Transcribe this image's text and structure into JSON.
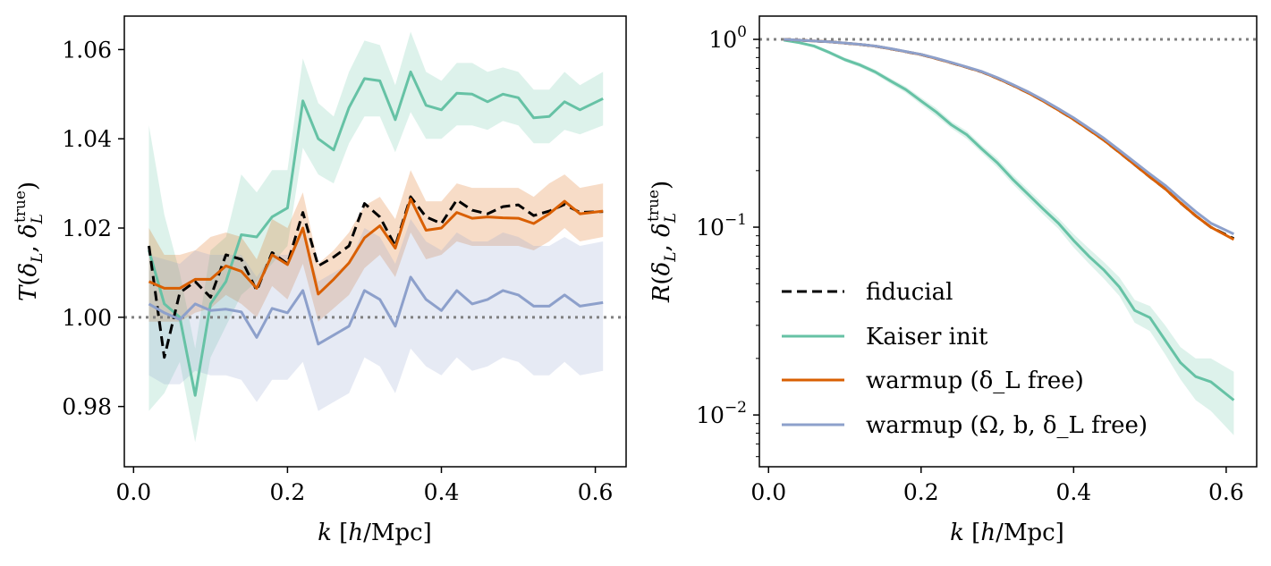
{
  "chart_data": [
    {
      "type": "line",
      "xlabel": "k [h/Mpc]",
      "ylabel": "T(δ_L, δ_L^true)",
      "xlim": [
        -0.012,
        0.64
      ],
      "ylim": [
        0.9665,
        1.0675
      ],
      "xticks": [
        0.0,
        0.2,
        0.4,
        0.6
      ],
      "xtick_labels": [
        "0.0",
        "0.2",
        "0.4",
        "0.6"
      ],
      "yticks": [
        0.98,
        1.0,
        1.02,
        1.04,
        1.06
      ],
      "ytick_labels": [
        "0.98",
        "1.00",
        "1.02",
        "1.04",
        "1.06"
      ],
      "reference_line": 1.0,
      "series": [
        {
          "name": "Kaiser init",
          "color": "#66c2a5",
          "dash": "solid",
          "x": [
            0.02,
            0.04,
            0.06,
            0.08,
            0.1,
            0.12,
            0.14,
            0.16,
            0.18,
            0.2,
            0.22,
            0.24,
            0.26,
            0.28,
            0.3,
            0.32,
            0.34,
            0.36,
            0.38,
            0.4,
            0.42,
            0.44,
            0.46,
            0.48,
            0.5,
            0.52,
            0.54,
            0.56,
            0.58,
            0.61
          ],
          "y": [
            1.015,
            1.003,
            1.0,
            0.9825,
            1.003,
            1.008,
            1.0185,
            1.018,
            1.0225,
            1.0245,
            1.0485,
            1.04,
            1.0375,
            1.047,
            1.0535,
            1.053,
            1.0443,
            1.055,
            1.0475,
            1.0465,
            1.0502,
            1.05,
            1.0483,
            1.05,
            1.0492,
            1.0447,
            1.045,
            1.0483,
            1.0465,
            1.049
          ],
          "band_low": [
            0.979,
            0.983,
            0.99,
            0.972,
            0.991,
            0.998,
            1.005,
            1.008,
            1.012,
            1.016,
            1.038,
            1.032,
            1.03,
            1.039,
            1.045,
            1.045,
            1.037,
            1.046,
            1.04,
            1.04,
            1.043,
            1.043,
            1.042,
            1.044,
            1.043,
            1.039,
            1.039,
            1.042,
            1.041,
            1.043
          ],
          "band_high": [
            1.043,
            1.023,
            1.01,
            0.993,
            1.015,
            1.018,
            1.032,
            1.028,
            1.033,
            1.033,
            1.058,
            1.048,
            1.045,
            1.055,
            1.062,
            1.061,
            1.052,
            1.064,
            1.055,
            1.053,
            1.057,
            1.057,
            1.055,
            1.056,
            1.055,
            1.051,
            1.051,
            1.055,
            1.052,
            1.055
          ]
        },
        {
          "name": "fiducial",
          "color": "#000000",
          "dash": "dashed",
          "x": [
            0.02,
            0.04,
            0.06,
            0.08,
            0.1,
            0.12,
            0.14,
            0.16,
            0.18,
            0.2,
            0.22,
            0.24,
            0.26,
            0.28,
            0.3,
            0.32,
            0.34,
            0.36,
            0.38,
            0.4,
            0.42,
            0.44,
            0.46,
            0.48,
            0.5,
            0.52,
            0.54,
            0.56,
            0.58,
            0.61
          ],
          "y": [
            1.016,
            0.991,
            1.0055,
            1.008,
            1.0045,
            1.014,
            1.013,
            1.006,
            1.0145,
            1.012,
            1.0235,
            1.0115,
            1.0135,
            1.016,
            1.0255,
            1.0225,
            1.016,
            1.027,
            1.0225,
            1.021,
            1.0263,
            1.024,
            1.0232,
            1.0248,
            1.0252,
            1.0228,
            1.0238,
            1.0253,
            1.0235,
            1.0237
          ]
        },
        {
          "name": "warmup (δ_L free)",
          "color": "#d95f02",
          "dash": "solid",
          "x": [
            0.02,
            0.04,
            0.06,
            0.08,
            0.1,
            0.12,
            0.14,
            0.16,
            0.18,
            0.2,
            0.22,
            0.24,
            0.26,
            0.28,
            0.3,
            0.32,
            0.34,
            0.36,
            0.38,
            0.4,
            0.42,
            0.44,
            0.46,
            0.48,
            0.5,
            0.52,
            0.54,
            0.56,
            0.58,
            0.61
          ],
          "y": [
            1.008,
            1.0065,
            1.0065,
            1.0085,
            1.0085,
            1.0115,
            1.0103,
            1.0065,
            1.014,
            1.0118,
            1.02,
            1.0052,
            1.0085,
            1.0122,
            1.0178,
            1.0205,
            1.0155,
            1.0265,
            1.0195,
            1.02,
            1.0235,
            1.0222,
            1.0225,
            1.0223,
            1.0222,
            1.021,
            1.0232,
            1.026,
            1.0232,
            1.0238
          ],
          "band_low": [
            0.999,
            0.999,
            0.999,
            1.001,
            1.002,
            1.005,
            1.003,
            1.0,
            1.007,
            1.004,
            1.012,
            0.999,
            1.002,
            1.005,
            1.011,
            1.014,
            1.009,
            1.019,
            1.013,
            1.014,
            1.017,
            1.016,
            1.016,
            1.016,
            1.016,
            1.015,
            1.017,
            1.02,
            1.017,
            1.018
          ],
          "band_high": [
            1.02,
            1.014,
            1.014,
            1.015,
            1.018,
            1.019,
            1.018,
            1.013,
            1.022,
            1.02,
            1.028,
            1.012,
            1.015,
            1.019,
            1.025,
            1.027,
            1.022,
            1.033,
            1.026,
            1.026,
            1.03,
            1.029,
            1.029,
            1.029,
            1.029,
            1.027,
            1.03,
            1.032,
            1.029,
            1.03
          ]
        },
        {
          "name": "warmup (Ω, b, δ_L free)",
          "color": "#8da0cb",
          "dash": "solid",
          "x": [
            0.02,
            0.04,
            0.06,
            0.08,
            0.1,
            0.12,
            0.14,
            0.16,
            0.18,
            0.2,
            0.22,
            0.24,
            0.26,
            0.28,
            0.3,
            0.32,
            0.34,
            0.36,
            0.38,
            0.4,
            0.42,
            0.44,
            0.46,
            0.48,
            0.5,
            0.52,
            0.54,
            0.56,
            0.58,
            0.61
          ],
          "y": [
            1.003,
            1.001,
            0.9995,
            1.003,
            1.0015,
            1.0018,
            1.0012,
            0.9955,
            1.002,
            1.001,
            1.006,
            0.994,
            0.996,
            0.998,
            1.006,
            1.004,
            0.998,
            1.009,
            1.004,
            1.0015,
            1.006,
            1.003,
            1.004,
            1.006,
            1.005,
            1.0025,
            1.0025,
            1.005,
            1.0025,
            1.0033
          ],
          "band_low": [
            0.987,
            0.985,
            0.985,
            0.988,
            0.987,
            0.987,
            0.986,
            0.981,
            0.986,
            0.986,
            0.99,
            0.979,
            0.981,
            0.983,
            0.991,
            0.989,
            0.983,
            0.993,
            0.989,
            0.987,
            0.991,
            0.988,
            0.989,
            0.991,
            0.99,
            0.987,
            0.987,
            0.99,
            0.987,
            0.988
          ],
          "band_high": [
            1.014,
            1.013,
            1.012,
            1.015,
            1.014,
            1.014,
            1.014,
            1.009,
            1.014,
            1.014,
            1.019,
            1.008,
            1.01,
            1.012,
            1.02,
            1.018,
            1.012,
            1.022,
            1.017,
            1.015,
            1.019,
            1.017,
            1.017,
            1.019,
            1.018,
            1.016,
            1.016,
            1.018,
            1.016,
            1.017
          ]
        }
      ]
    },
    {
      "type": "line",
      "xlabel": "k [h/Mpc]",
      "ylabel": "R(δ_L, δ_L^true)",
      "yscale": "log",
      "xlim": [
        -0.012,
        0.64
      ],
      "ylim": [
        0.0053,
        1.33
      ],
      "xticks": [
        0.0,
        0.2,
        0.4,
        0.6
      ],
      "xtick_labels": [
        "0.0",
        "0.2",
        "0.4",
        "0.6"
      ],
      "yticks": [
        0.01,
        0.1,
        1.0
      ],
      "ytick_labels": [
        "10",
        "10",
        "10"
      ],
      "ytick_exponents": [
        "−2",
        "−1",
        "0"
      ],
      "reference_line": 1.0,
      "legend_position": "lower-left",
      "legend": [
        "fiducial",
        "Kaiser init",
        "warmup (δ_L free)",
        "warmup (Ω, b, δ_L free)"
      ],
      "series": [
        {
          "name": "Kaiser init",
          "color": "#66c2a5",
          "x": [
            0.02,
            0.04,
            0.06,
            0.08,
            0.1,
            0.12,
            0.14,
            0.16,
            0.18,
            0.2,
            0.22,
            0.24,
            0.26,
            0.28,
            0.3,
            0.32,
            0.34,
            0.36,
            0.38,
            0.4,
            0.42,
            0.44,
            0.46,
            0.48,
            0.5,
            0.52,
            0.54,
            0.56,
            0.58,
            0.61
          ],
          "y": [
            0.99,
            0.96,
            0.92,
            0.85,
            0.78,
            0.73,
            0.67,
            0.6,
            0.54,
            0.47,
            0.41,
            0.35,
            0.31,
            0.26,
            0.22,
            0.18,
            0.15,
            0.125,
            0.105,
            0.085,
            0.07,
            0.059,
            0.048,
            0.036,
            0.033,
            0.025,
            0.019,
            0.016,
            0.015,
            0.012
          ],
          "band_low": [
            0.98,
            0.95,
            0.9,
            0.83,
            0.76,
            0.71,
            0.65,
            0.58,
            0.52,
            0.45,
            0.39,
            0.335,
            0.295,
            0.248,
            0.208,
            0.17,
            0.141,
            0.117,
            0.098,
            0.078,
            0.064,
            0.053,
            0.043,
            0.031,
            0.028,
            0.021,
            0.0155,
            0.012,
            0.0105,
            0.0078
          ],
          "band_high": [
            1.0,
            0.97,
            0.94,
            0.87,
            0.8,
            0.75,
            0.69,
            0.62,
            0.56,
            0.49,
            0.43,
            0.365,
            0.325,
            0.272,
            0.232,
            0.19,
            0.159,
            0.133,
            0.112,
            0.092,
            0.077,
            0.065,
            0.054,
            0.041,
            0.038,
            0.03,
            0.023,
            0.02,
            0.02,
            0.017
          ]
        },
        {
          "name": "fiducial",
          "color": "#000000",
          "dash": "dashed",
          "x": [
            0.02,
            0.04,
            0.06,
            0.08,
            0.1,
            0.12,
            0.14,
            0.16,
            0.18,
            0.2,
            0.22,
            0.24,
            0.26,
            0.28,
            0.3,
            0.32,
            0.34,
            0.36,
            0.38,
            0.4,
            0.42,
            0.44,
            0.46,
            0.48,
            0.5,
            0.52,
            0.54,
            0.56,
            0.58,
            0.61
          ],
          "y": [
            1.0,
            0.99,
            0.98,
            0.97,
            0.955,
            0.94,
            0.92,
            0.89,
            0.86,
            0.83,
            0.79,
            0.75,
            0.71,
            0.67,
            0.62,
            0.57,
            0.52,
            0.47,
            0.42,
            0.375,
            0.33,
            0.29,
            0.25,
            0.215,
            0.185,
            0.16,
            0.135,
            0.115,
            0.1,
            0.087
          ]
        },
        {
          "name": "warmup (δ_L free)",
          "color": "#d95f02",
          "x": [
            0.02,
            0.04,
            0.06,
            0.08,
            0.1,
            0.12,
            0.14,
            0.16,
            0.18,
            0.2,
            0.22,
            0.24,
            0.26,
            0.28,
            0.3,
            0.32,
            0.34,
            0.36,
            0.38,
            0.4,
            0.42,
            0.44,
            0.46,
            0.48,
            0.5,
            0.52,
            0.54,
            0.56,
            0.58,
            0.61
          ],
          "y": [
            1.0,
            0.99,
            0.98,
            0.97,
            0.955,
            0.94,
            0.92,
            0.89,
            0.86,
            0.83,
            0.79,
            0.75,
            0.71,
            0.67,
            0.62,
            0.57,
            0.52,
            0.47,
            0.42,
            0.375,
            0.33,
            0.29,
            0.25,
            0.215,
            0.185,
            0.16,
            0.135,
            0.115,
            0.1,
            0.086
          ]
        },
        {
          "name": "warmup (Ω, b, δ_L free)",
          "color": "#8da0cb",
          "x": [
            0.02,
            0.04,
            0.06,
            0.08,
            0.1,
            0.12,
            0.14,
            0.16,
            0.18,
            0.2,
            0.22,
            0.24,
            0.26,
            0.28,
            0.3,
            0.32,
            0.34,
            0.36,
            0.38,
            0.4,
            0.42,
            0.44,
            0.46,
            0.48,
            0.5,
            0.52,
            0.54,
            0.56,
            0.58,
            0.61
          ],
          "y": [
            1.0,
            0.99,
            0.98,
            0.97,
            0.956,
            0.941,
            0.921,
            0.892,
            0.862,
            0.832,
            0.793,
            0.753,
            0.713,
            0.673,
            0.625,
            0.575,
            0.526,
            0.476,
            0.427,
            0.382,
            0.337,
            0.297,
            0.257,
            0.222,
            0.192,
            0.167,
            0.142,
            0.121,
            0.105,
            0.092
          ]
        }
      ]
    }
  ]
}
